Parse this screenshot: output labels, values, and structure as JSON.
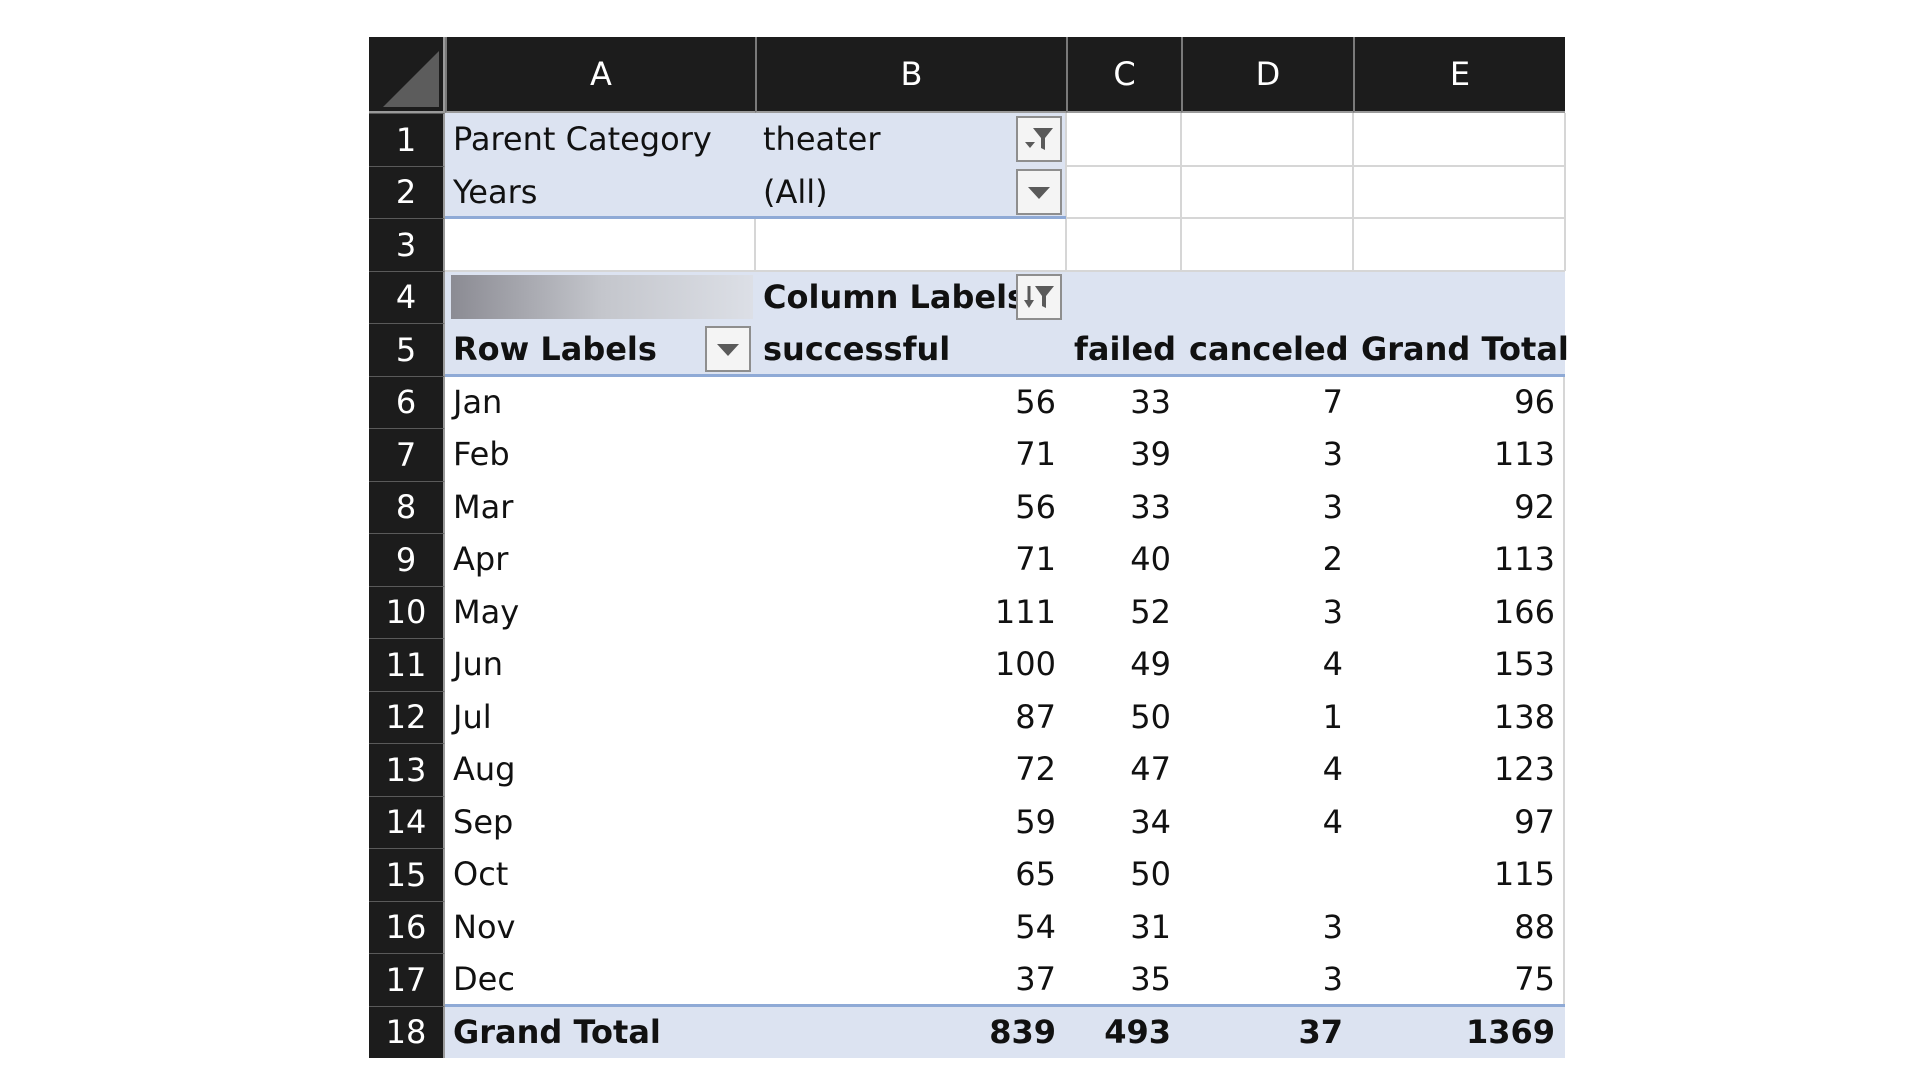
{
  "columns": [
    "A",
    "B",
    "C",
    "D",
    "E"
  ],
  "rows": [
    "1",
    "2",
    "3",
    "4",
    "5",
    "6",
    "7",
    "8",
    "9",
    "10",
    "11",
    "12",
    "13",
    "14",
    "15",
    "16",
    "17",
    "18"
  ],
  "filters": [
    {
      "label": "Parent Category",
      "value": "theater",
      "icon": "filter-applied-icon"
    },
    {
      "label": "Years",
      "value": "(All)",
      "icon": "dropdown-arrow-icon"
    }
  ],
  "pivot": {
    "column_labels": "Column Labels",
    "column_labels_icon": "sort-filter-icon",
    "row_labels": "Row Labels",
    "row_labels_icon": "dropdown-arrow-icon",
    "headers": [
      "successful",
      "failed",
      "canceled",
      "Grand Total"
    ],
    "rows": [
      {
        "label": "Jan",
        "successful": "56",
        "failed": "33",
        "canceled": "7",
        "total": "96"
      },
      {
        "label": "Feb",
        "successful": "71",
        "failed": "39",
        "canceled": "3",
        "total": "113"
      },
      {
        "label": "Mar",
        "successful": "56",
        "failed": "33",
        "canceled": "3",
        "total": "92"
      },
      {
        "label": "Apr",
        "successful": "71",
        "failed": "40",
        "canceled": "2",
        "total": "113"
      },
      {
        "label": "May",
        "successful": "111",
        "failed": "52",
        "canceled": "3",
        "total": "166"
      },
      {
        "label": "Jun",
        "successful": "100",
        "failed": "49",
        "canceled": "4",
        "total": "153"
      },
      {
        "label": "Jul",
        "successful": "87",
        "failed": "50",
        "canceled": "1",
        "total": "138"
      },
      {
        "label": "Aug",
        "successful": "72",
        "failed": "47",
        "canceled": "4",
        "total": "123"
      },
      {
        "label": "Sep",
        "successful": "59",
        "failed": "34",
        "canceled": "4",
        "total": "97"
      },
      {
        "label": "Oct",
        "successful": "65",
        "failed": "50",
        "canceled": "",
        "total": "115"
      },
      {
        "label": "Nov",
        "successful": "54",
        "failed": "31",
        "canceled": "3",
        "total": "88"
      },
      {
        "label": "Dec",
        "successful": "37",
        "failed": "35",
        "canceled": "3",
        "total": "75"
      }
    ],
    "grand_total": {
      "label": "Grand Total",
      "successful": "839",
      "failed": "493",
      "canceled": "37",
      "total": "1369"
    }
  },
  "colors": {
    "header_bg": "#1c1c1c",
    "pivot_band": "#dce3f1",
    "pivot_rule": "#8faad6"
  }
}
